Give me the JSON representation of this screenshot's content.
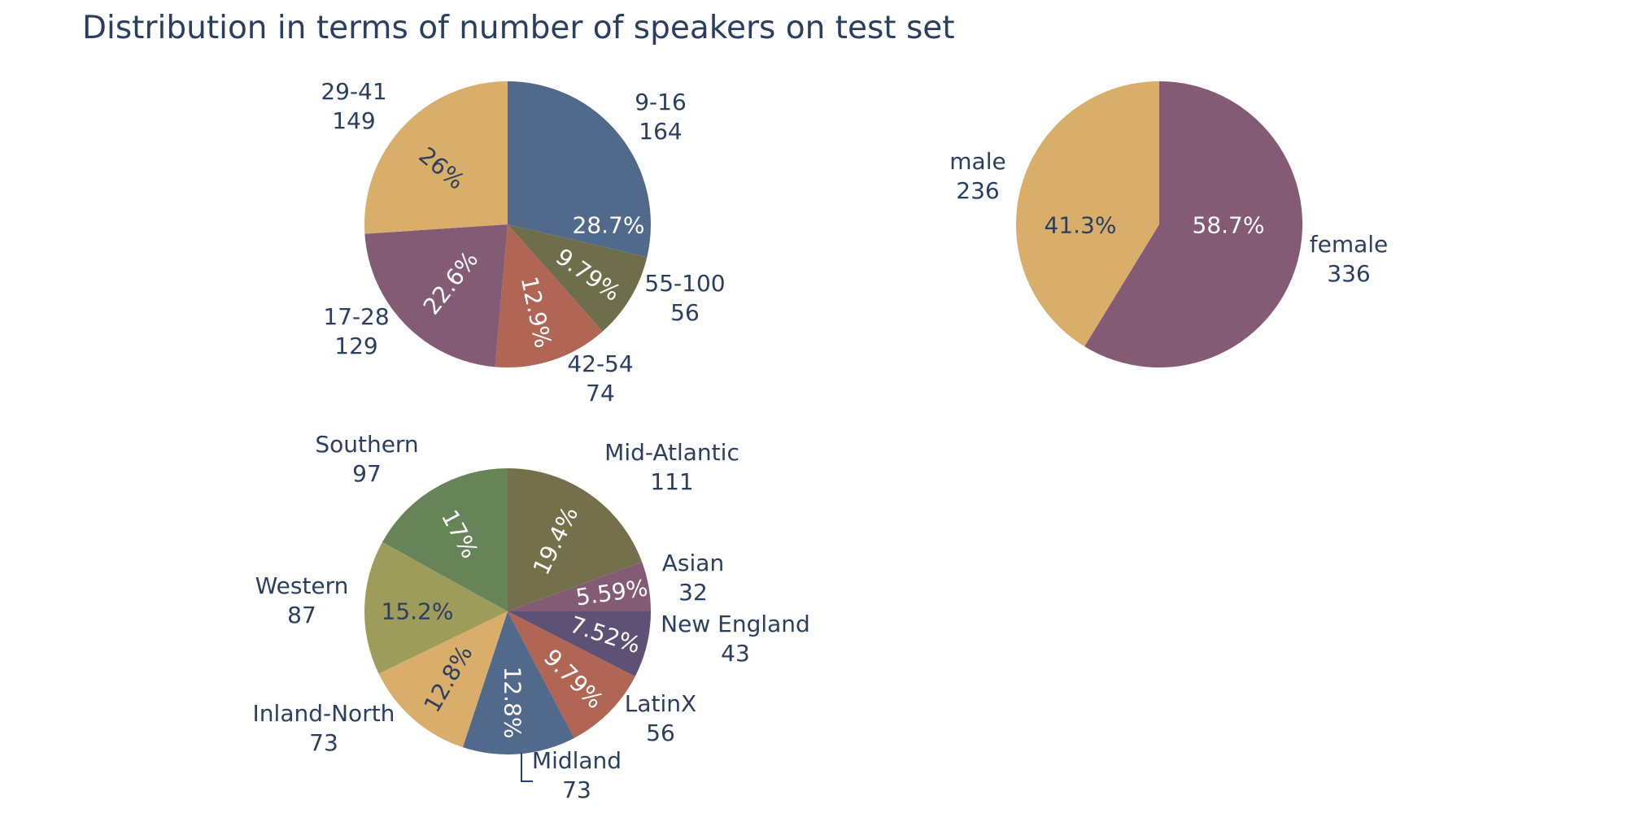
{
  "page": {
    "title": "Distribution in terms of number of speakers on test set"
  },
  "chart_data": [
    {
      "type": "pie",
      "title": "",
      "slices": [
        {
          "label": "9-16",
          "value": 164,
          "percent": "28.7%",
          "color": "#51698a",
          "text_color": "#ffffff"
        },
        {
          "label": "55-100",
          "value": 56,
          "percent": "9.79%",
          "color": "#6f6e4c",
          "text_color": "#ffffff"
        },
        {
          "label": "42-54",
          "value": 74,
          "percent": "12.9%",
          "color": "#b06555",
          "text_color": "#ffffff"
        },
        {
          "label": "17-28",
          "value": 129,
          "percent": "22.6%",
          "color": "#835b74",
          "text_color": "#ffffff"
        },
        {
          "label": "29-41",
          "value": 149,
          "percent": "26%",
          "color": "#d9ad6a",
          "text_color": "#2a3f5f"
        }
      ]
    },
    {
      "type": "pie",
      "title": "",
      "slices": [
        {
          "label": "female",
          "value": 336,
          "percent": "58.7%",
          "color": "#835b74",
          "text_color": "#ffffff"
        },
        {
          "label": "male",
          "value": 236,
          "percent": "41.3%",
          "color": "#d9ad6a",
          "text_color": "#2a3f5f"
        }
      ]
    },
    {
      "type": "pie",
      "title": "",
      "slices": [
        {
          "label": "Mid-Atlantic",
          "value": 111,
          "percent": "19.4%",
          "color": "#75704c",
          "text_color": "#ffffff"
        },
        {
          "label": "Asian",
          "value": 32,
          "percent": "5.59%",
          "color": "#835b74",
          "text_color": "#ffffff"
        },
        {
          "label": "New England",
          "value": 43,
          "percent": "7.52%",
          "color": "#5d5276",
          "text_color": "#ffffff"
        },
        {
          "label": "LatinX",
          "value": 56,
          "percent": "9.79%",
          "color": "#b06555",
          "text_color": "#ffffff"
        },
        {
          "label": "Midland",
          "value": 73,
          "percent": "12.8%",
          "color": "#51698a",
          "text_color": "#ffffff"
        },
        {
          "label": "Inland-North",
          "value": 73,
          "percent": "12.8%",
          "color": "#d9ad6a",
          "text_color": "#2a3f5f"
        },
        {
          "label": "Western",
          "value": 87,
          "percent": "15.2%",
          "color": "#9e9c5b",
          "text_color": "#2a3f5f"
        },
        {
          "label": "Southern",
          "value": 97,
          "percent": "17%",
          "color": "#668458",
          "text_color": "#ffffff"
        }
      ]
    }
  ]
}
